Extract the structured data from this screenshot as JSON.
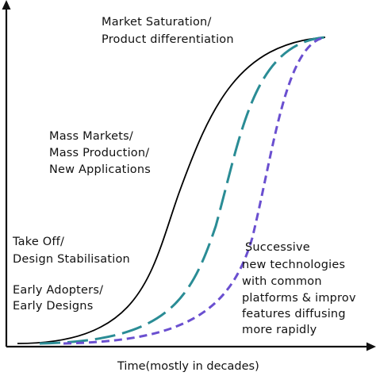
{
  "axes": {
    "x_label": "Time(mostly in decades)",
    "line_color": "#111111"
  },
  "stages": [
    {
      "lines": [
        "Market Saturation/",
        "Product differentiation"
      ]
    },
    {
      "lines": [
        "Mass Markets/",
        "Mass Production/",
        "New Applications"
      ]
    },
    {
      "lines": [
        "Take Off/",
        "Design Stabilisation"
      ]
    },
    {
      "lines": [
        "Early Adopters/",
        "Early Designs"
      ]
    }
  ],
  "successive_note": {
    "lines": [
      "Successive",
      "new technologies",
      "with common",
      "platforms & improv",
      "features diffusing",
      "more rapidly"
    ]
  },
  "curves": [
    {
      "id": "technology-1",
      "color": "#000000",
      "style": "solid"
    },
    {
      "id": "technology-2",
      "color": "#2a8c95",
      "style": "long-dash"
    },
    {
      "id": "technology-3",
      "color": "#6a4fd0",
      "style": "short-dash"
    }
  ]
}
